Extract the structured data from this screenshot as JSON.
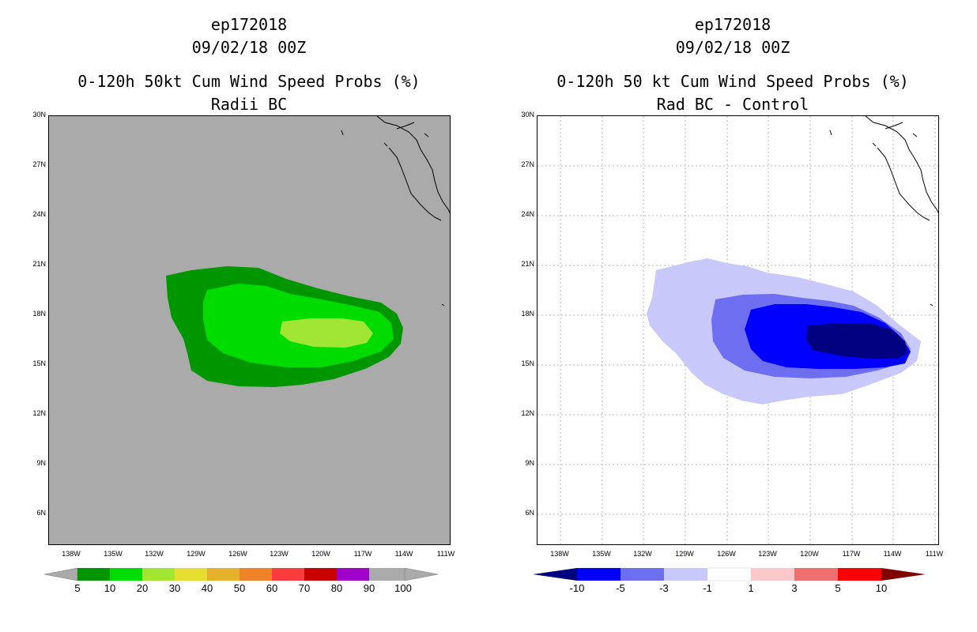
{
  "left_panel": {
    "title_line1": "ep172018",
    "title_line2": "09/02/18 00Z",
    "title_line3": "0-120h 50kt Cum Wind Speed Probs (%)",
    "title_line4": "Radii BC",
    "background_color": "#aaaaaa",
    "colorbar_labels": [
      "5",
      "10",
      "20",
      "30",
      "40",
      "50",
      "60",
      "70",
      "80",
      "90",
      "100"
    ],
    "colorbar_colors": [
      "#009600",
      "#00dc00",
      "#a0e632",
      "#e6dc32",
      "#e6af2d",
      "#f08228",
      "#fa3c3c",
      "#c80000",
      "#a000c8",
      "#aaaaaa"
    ]
  },
  "right_panel": {
    "title_line1": "ep172018",
    "title_line2": "09/02/18 00Z",
    "title_line3": "0-120h 50 kt Cum Wind Speed Probs (%)",
    "title_line4": "Rad BC - Control",
    "background_color": "#ffffff",
    "colorbar_labels": [
      "-10",
      "-5",
      "-3",
      "-1",
      "1",
      "3",
      "5",
      "10"
    ],
    "colorbar_colors": [
      "#000080",
      "#0000ff",
      "#6e6ef0",
      "#c8c8fa",
      "#ffffff",
      "#fac8c8",
      "#f06e6e",
      "#ff0000",
      "#800000"
    ]
  },
  "axes": {
    "lat_labels": [
      "30N",
      "27N",
      "24N",
      "21N",
      "18N",
      "15N",
      "12N",
      "9N",
      "6N"
    ],
    "lon_labels": [
      "138W",
      "135W",
      "132W",
      "129W",
      "126W",
      "123W",
      "120W",
      "117W",
      "114W",
      "111W"
    ]
  }
}
